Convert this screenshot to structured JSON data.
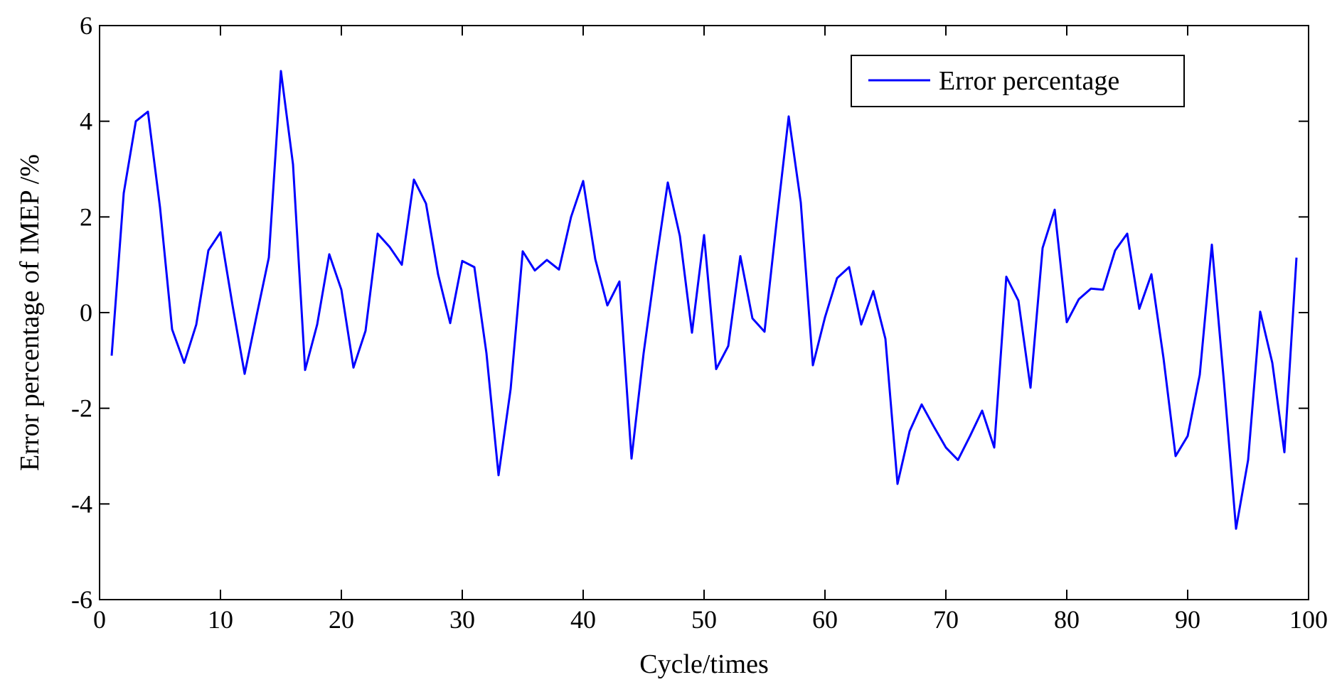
{
  "chart_data": {
    "type": "line",
    "xlabel": "Cycle/times",
    "ylabel": "Error percentage of IMEP  /%",
    "xlim": [
      0,
      100
    ],
    "ylim": [
      -6,
      6
    ],
    "xticks": [
      0,
      10,
      20,
      30,
      40,
      50,
      60,
      70,
      80,
      90,
      100
    ],
    "yticks": [
      -6,
      -4,
      -2,
      0,
      2,
      4,
      6
    ],
    "grid": false,
    "legend_position": "top-right",
    "series": [
      {
        "name": "Error percentage",
        "color": "#0000ff",
        "x": [
          1,
          2,
          3,
          4,
          5,
          6,
          7,
          8,
          9,
          10,
          11,
          12,
          13,
          14,
          15,
          16,
          17,
          18,
          19,
          20,
          21,
          22,
          23,
          24,
          25,
          26,
          27,
          28,
          29,
          30,
          31,
          32,
          33,
          34,
          35,
          36,
          37,
          38,
          39,
          40,
          41,
          42,
          43,
          44,
          45,
          46,
          47,
          48,
          49,
          50,
          51,
          52,
          53,
          54,
          55,
          56,
          57,
          58,
          59,
          60,
          61,
          62,
          63,
          64,
          65,
          66,
          67,
          68,
          69,
          70,
          71,
          72,
          73,
          74,
          75,
          76,
          77,
          78,
          79,
          80,
          81,
          82,
          83,
          84,
          85,
          86,
          87,
          88,
          89,
          90,
          91,
          92,
          93,
          94,
          95,
          96,
          97,
          98,
          99
        ],
        "values": [
          -0.9,
          2.5,
          4.0,
          4.2,
          2.2,
          -0.35,
          -1.05,
          -0.25,
          1.3,
          1.68,
          0.15,
          -1.28,
          -0.05,
          1.15,
          5.05,
          3.1,
          -1.2,
          -0.25,
          1.22,
          0.48,
          -1.15,
          -0.38,
          1.65,
          1.37,
          1.0,
          2.78,
          2.28,
          0.8,
          -0.22,
          1.08,
          0.95,
          -0.85,
          -3.4,
          -1.6,
          1.28,
          0.88,
          1.1,
          0.9,
          2.0,
          2.75,
          1.12,
          0.15,
          0.65,
          -3.05,
          -0.85,
          1.0,
          2.72,
          1.6,
          -0.42,
          1.62,
          -1.18,
          -0.7,
          1.18,
          -0.12,
          -0.4,
          1.9,
          4.1,
          2.3,
          -1.1,
          -0.1,
          0.72,
          0.95,
          -0.25,
          0.45,
          -0.55,
          -3.58,
          -2.48,
          -1.92,
          -2.38,
          -2.82,
          -3.08,
          -2.58,
          -2.05,
          -2.82,
          0.75,
          0.25,
          -1.57,
          1.35,
          2.15,
          -0.2,
          0.28,
          0.5,
          0.48,
          1.3,
          1.65,
          0.08,
          0.8,
          -0.95,
          -3.0,
          -2.58,
          -1.3,
          1.42,
          -1.45,
          -4.52,
          -3.08,
          0.02,
          -1.05,
          -2.92,
          1.15
        ]
      }
    ]
  }
}
